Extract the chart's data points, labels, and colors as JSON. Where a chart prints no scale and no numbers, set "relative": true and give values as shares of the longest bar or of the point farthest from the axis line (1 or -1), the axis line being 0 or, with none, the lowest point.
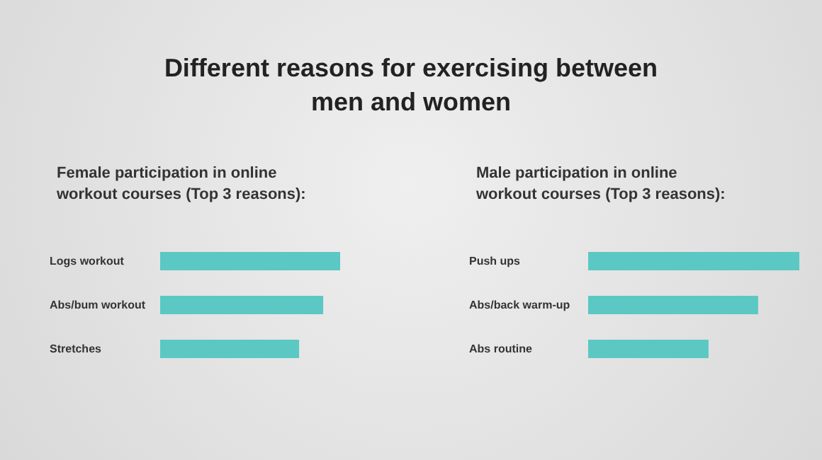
{
  "chart_data": [
    {
      "type": "bar",
      "orientation": "horizontal",
      "relative": true,
      "title": "Different reasons for exercising between men and women",
      "subtitle": "Female participation in online workout courses (Top 3 reasons):",
      "categories": [
        "Logs workout",
        "Abs/bum workout",
        "Stretches"
      ],
      "values": [
        1,
        0.906,
        0.772
      ],
      "color": "#5bc8c4"
    },
    {
      "type": "bar",
      "orientation": "horizontal",
      "relative": true,
      "subtitle": "Male participation in online workout courses (Top 3 reasons):",
      "categories": [
        "Push ups",
        "Abs/back warm-up",
        "Abs routine"
      ],
      "values": [
        1,
        0.805,
        0.57
      ],
      "color": "#5bc8c4"
    }
  ]
}
